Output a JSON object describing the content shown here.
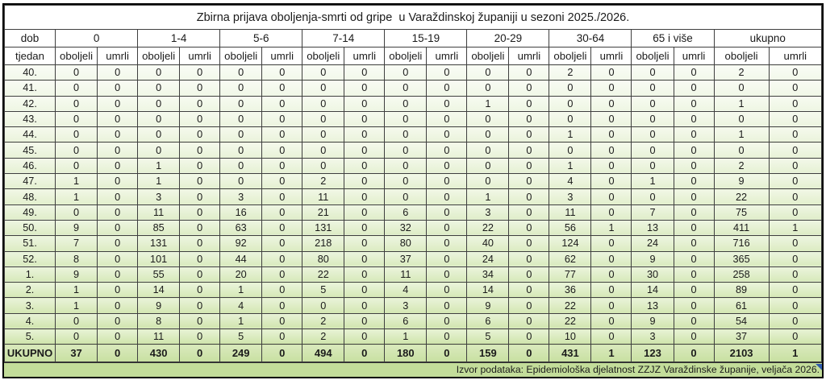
{
  "title": "Zbirna prijava oboljenja-smrti od gripe  u Varaždinskoj županiji u sezoni 2025./2026.",
  "table": {
    "corner_header_top": "dob",
    "corner_header_bottom": "tjedan",
    "age_groups": [
      "0",
      "1-4",
      "5-6",
      "7-14",
      "15-19",
      "20-29",
      "30-64",
      "65 i više",
      "ukupno"
    ],
    "sub_headers": [
      "oboljeli",
      "umrli"
    ],
    "rows": [
      {
        "week": "40.",
        "values": [
          0,
          0,
          0,
          0,
          0,
          0,
          0,
          0,
          0,
          0,
          0,
          0,
          2,
          0,
          0,
          0,
          2,
          0
        ]
      },
      {
        "week": "41.",
        "values": [
          0,
          0,
          0,
          0,
          0,
          0,
          0,
          0,
          0,
          0,
          0,
          0,
          0,
          0,
          0,
          0,
          0,
          0
        ]
      },
      {
        "week": "42.",
        "values": [
          0,
          0,
          0,
          0,
          0,
          0,
          0,
          0,
          0,
          0,
          1,
          0,
          0,
          0,
          0,
          0,
          1,
          0
        ]
      },
      {
        "week": "43.",
        "values": [
          0,
          0,
          0,
          0,
          0,
          0,
          0,
          0,
          0,
          0,
          0,
          0,
          0,
          0,
          0,
          0,
          0,
          0
        ]
      },
      {
        "week": "44.",
        "values": [
          0,
          0,
          0,
          0,
          0,
          0,
          0,
          0,
          0,
          0,
          0,
          0,
          1,
          0,
          0,
          0,
          1,
          0
        ]
      },
      {
        "week": "45.",
        "values": [
          0,
          0,
          0,
          0,
          0,
          0,
          0,
          0,
          0,
          0,
          0,
          0,
          0,
          0,
          0,
          0,
          0,
          0
        ]
      },
      {
        "week": "46.",
        "values": [
          0,
          0,
          1,
          0,
          0,
          0,
          0,
          0,
          0,
          0,
          0,
          0,
          1,
          0,
          0,
          0,
          2,
          0
        ]
      },
      {
        "week": "47.",
        "values": [
          1,
          0,
          1,
          0,
          0,
          0,
          2,
          0,
          0,
          0,
          0,
          0,
          4,
          0,
          1,
          0,
          9,
          0
        ]
      },
      {
        "week": "48.",
        "values": [
          1,
          0,
          3,
          0,
          3,
          0,
          11,
          0,
          0,
          0,
          1,
          0,
          3,
          0,
          0,
          0,
          22,
          0
        ]
      },
      {
        "week": "49.",
        "values": [
          0,
          0,
          11,
          0,
          16,
          0,
          21,
          0,
          6,
          0,
          3,
          0,
          11,
          0,
          7,
          0,
          75,
          0
        ]
      },
      {
        "week": "50.",
        "values": [
          9,
          0,
          85,
          0,
          63,
          0,
          131,
          0,
          32,
          0,
          22,
          0,
          56,
          1,
          13,
          0,
          411,
          1
        ]
      },
      {
        "week": "51.",
        "values": [
          7,
          0,
          131,
          0,
          92,
          0,
          218,
          0,
          80,
          0,
          40,
          0,
          124,
          0,
          24,
          0,
          716,
          0
        ]
      },
      {
        "week": "52.",
        "values": [
          8,
          0,
          101,
          0,
          44,
          0,
          80,
          0,
          37,
          0,
          24,
          0,
          62,
          0,
          9,
          0,
          365,
          0
        ]
      },
      {
        "week": "1.",
        "values": [
          9,
          0,
          55,
          0,
          20,
          0,
          22,
          0,
          11,
          0,
          34,
          0,
          77,
          0,
          30,
          0,
          258,
          0
        ]
      },
      {
        "week": "2.",
        "values": [
          1,
          0,
          14,
          0,
          1,
          0,
          5,
          0,
          4,
          0,
          14,
          0,
          36,
          0,
          14,
          0,
          89,
          0
        ]
      },
      {
        "week": "3.",
        "values": [
          1,
          0,
          9,
          0,
          4,
          0,
          0,
          0,
          3,
          0,
          9,
          0,
          22,
          0,
          13,
          0,
          61,
          0
        ]
      },
      {
        "week": "4.",
        "values": [
          0,
          0,
          8,
          0,
          1,
          0,
          2,
          0,
          6,
          0,
          6,
          0,
          22,
          0,
          9,
          0,
          54,
          0
        ]
      },
      {
        "week": "5.",
        "values": [
          0,
          0,
          11,
          0,
          5,
          0,
          2,
          0,
          1,
          0,
          5,
          0,
          10,
          0,
          3,
          0,
          37,
          0
        ]
      }
    ],
    "total_row": {
      "week": "UKUPNO",
      "values": [
        37,
        0,
        430,
        0,
        249,
        0,
        494,
        0,
        180,
        0,
        159,
        0,
        431,
        1,
        123,
        0,
        2103,
        1
      ]
    }
  },
  "footer": "Izvor podataka: Epidemiološka djelatnost ZZJZ Varaždinske županije, veljača 2026.",
  "colors": {
    "row_first": "#f2f8ea",
    "row_last": "#cfe4ab",
    "total_row": "#c8e0a1",
    "footer_bg": "#c3dd9a",
    "corner_marker": "#2e5aac"
  }
}
